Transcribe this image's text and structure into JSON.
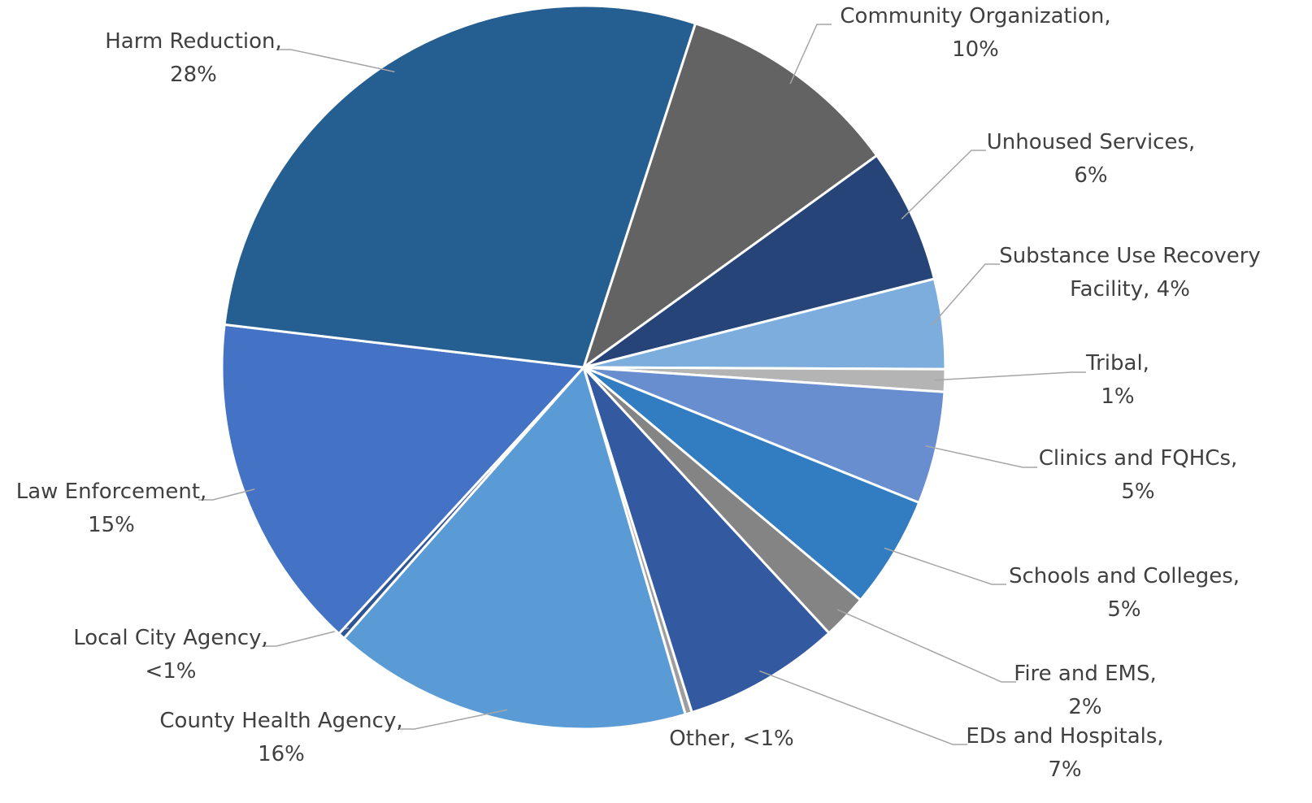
{
  "chart_data": {
    "type": "pie",
    "categories": [
      "Community Organization,",
      "Unhoused Services,",
      "Substance Use Recovery Facility,",
      "Tribal,",
      "Clinics and FQHCs,",
      "Schools and Colleges,",
      "Fire and EMS,",
      "EDs and Hospitals,",
      "Other,",
      "County Health Agency,",
      "Local City Agency,",
      "Law Enforcement,",
      "Harm Reduction,"
    ],
    "values": [
      10,
      6,
      4,
      1,
      5,
      5,
      2,
      7,
      0.3,
      16,
      0.3,
      15,
      28
    ],
    "value_labels": [
      "10%",
      "6%",
      "4%",
      "1%",
      "5%",
      "5%",
      "2%",
      "7%",
      "<1%",
      "16%",
      "<1%",
      "15%",
      "28%"
    ],
    "colors": [
      "#636363",
      "#264478",
      "#7caddc",
      "#b4b4b4",
      "#698ed0",
      "#327dc2",
      "#848484",
      "#335aa1",
      "#9e9e9e",
      "#5b9bd5",
      "#2f5597",
      "#4472c4",
      "#255e91"
    ]
  }
}
